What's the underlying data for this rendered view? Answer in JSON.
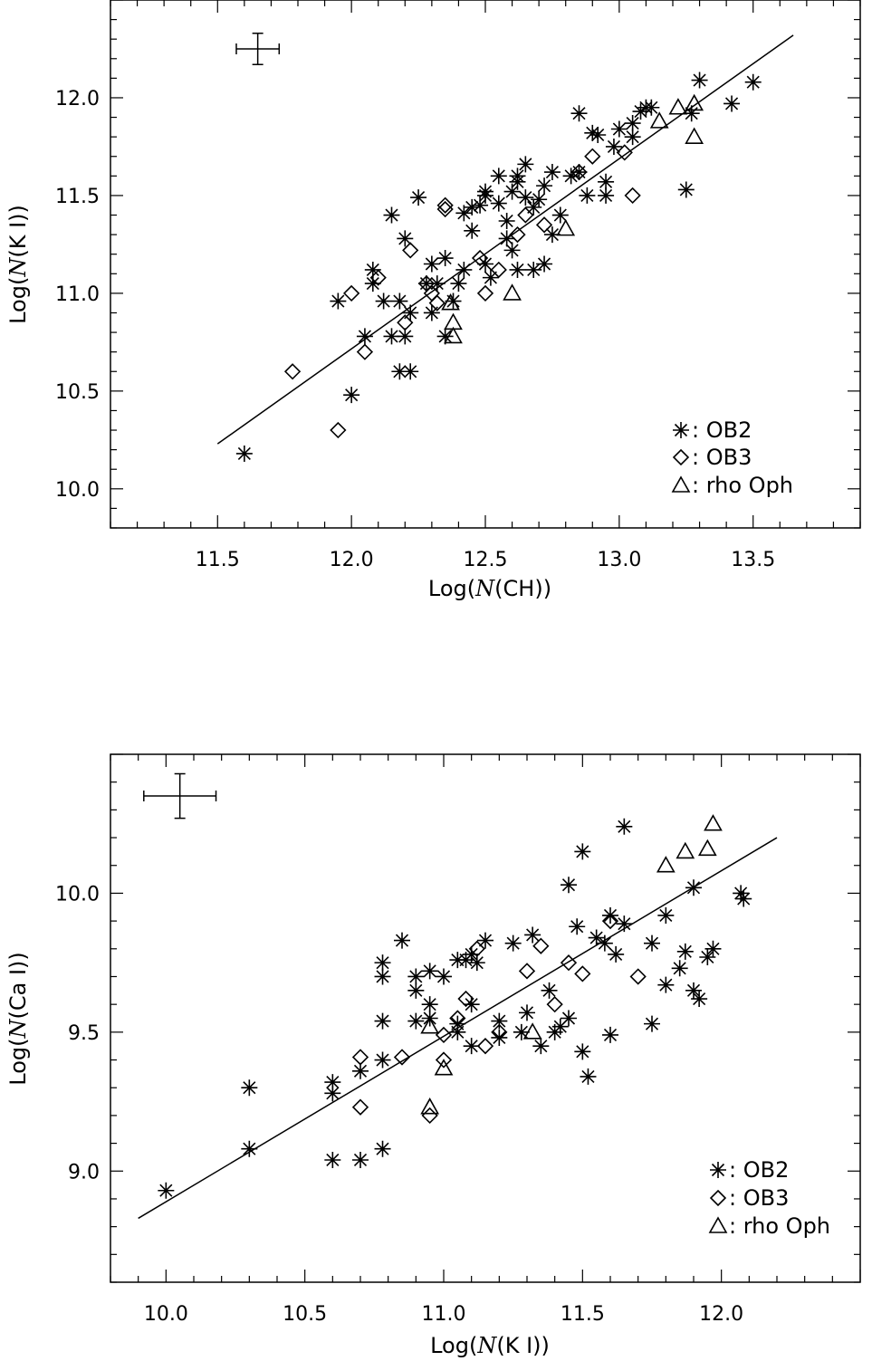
{
  "chart_data": [
    {
      "type": "scatter",
      "xlabel": "Log(N(CH))",
      "xlabel_parts": [
        "Log(",
        "N",
        "(CH))"
      ],
      "ylabel": "Log(N(K I))",
      "ylabel_parts": [
        "Log(",
        "N",
        "(K I))"
      ],
      "xlim": [
        11.1,
        13.9
      ],
      "ylim": [
        9.8,
        12.5
      ],
      "xticks": [
        11.5,
        12.0,
        12.5,
        13.0,
        13.5
      ],
      "xtick_labels": [
        "11.5",
        "12.0",
        "12.5",
        "13.0",
        "13.5"
      ],
      "yticks": [
        10.0,
        10.5,
        11.0,
        11.5,
        12.0
      ],
      "ytick_labels": [
        "10.0",
        "10.5",
        "11.0",
        "11.5",
        "12.0"
      ],
      "grid": false,
      "legend_position": "bottom-right",
      "fit_line": {
        "x": [
          11.5,
          13.65
        ],
        "y": [
          10.23,
          12.32
        ]
      },
      "error_bar": {
        "x": 11.65,
        "y": 12.25,
        "xerr": 0.08,
        "yerr": 0.08
      },
      "series": [
        {
          "name": "OB2",
          "legend_label": ": OB2",
          "marker": "asterisk",
          "points": [
            [
              11.6,
              10.18
            ],
            [
              11.95,
              10.96
            ],
            [
              12.0,
              10.48
            ],
            [
              12.05,
              10.78
            ],
            [
              12.08,
              11.12
            ],
            [
              12.08,
              11.05
            ],
            [
              12.12,
              10.96
            ],
            [
              12.15,
              11.4
            ],
            [
              12.15,
              10.78
            ],
            [
              12.18,
              10.96
            ],
            [
              12.18,
              10.6
            ],
            [
              12.2,
              11.28
            ],
            [
              12.2,
              10.78
            ],
            [
              12.22,
              10.6
            ],
            [
              12.22,
              10.9
            ],
            [
              12.25,
              11.49
            ],
            [
              12.28,
              11.05
            ],
            [
              12.3,
              10.9
            ],
            [
              12.3,
              11.15
            ],
            [
              12.32,
              11.05
            ],
            [
              12.35,
              11.18
            ],
            [
              12.35,
              10.78
            ],
            [
              12.38,
              10.96
            ],
            [
              12.4,
              11.05
            ],
            [
              12.42,
              11.41
            ],
            [
              12.42,
              11.12
            ],
            [
              12.45,
              11.32
            ],
            [
              12.45,
              11.44
            ],
            [
              12.48,
              11.45
            ],
            [
              12.5,
              11.5
            ],
            [
              12.5,
              11.52
            ],
            [
              12.5,
              11.15
            ],
            [
              12.52,
              11.08
            ],
            [
              12.55,
              11.46
            ],
            [
              12.55,
              11.6
            ],
            [
              12.58,
              11.37
            ],
            [
              12.58,
              11.28
            ],
            [
              12.6,
              11.52
            ],
            [
              12.6,
              11.22
            ],
            [
              12.62,
              11.57
            ],
            [
              12.62,
              11.6
            ],
            [
              12.62,
              11.12
            ],
            [
              12.65,
              11.66
            ],
            [
              12.65,
              11.49
            ],
            [
              12.68,
              11.44
            ],
            [
              12.68,
              11.12
            ],
            [
              12.7,
              11.48
            ],
            [
              12.72,
              11.15
            ],
            [
              12.72,
              11.55
            ],
            [
              12.75,
              11.62
            ],
            [
              12.75,
              11.3
            ],
            [
              12.78,
              11.4
            ],
            [
              12.82,
              11.6
            ],
            [
              12.85,
              11.62
            ],
            [
              12.85,
              11.92
            ],
            [
              12.88,
              11.5
            ],
            [
              12.9,
              11.82
            ],
            [
              12.92,
              11.81
            ],
            [
              12.95,
              11.5
            ],
            [
              12.95,
              11.57
            ],
            [
              12.98,
              11.75
            ],
            [
              13.0,
              11.84
            ],
            [
              13.05,
              11.8
            ],
            [
              13.05,
              11.87
            ],
            [
              13.08,
              11.93
            ],
            [
              13.1,
              11.95
            ],
            [
              13.12,
              11.95
            ],
            [
              13.25,
              11.53
            ],
            [
              13.27,
              11.92
            ],
            [
              13.3,
              12.09
            ],
            [
              13.42,
              11.97
            ],
            [
              13.5,
              12.08
            ]
          ]
        },
        {
          "name": "OB3",
          "legend_label": ": OB3",
          "marker": "diamond",
          "points": [
            [
              11.78,
              10.6
            ],
            [
              11.95,
              10.3
            ],
            [
              12.0,
              11.0
            ],
            [
              12.05,
              10.7
            ],
            [
              12.1,
              11.08
            ],
            [
              12.2,
              10.85
            ],
            [
              12.22,
              11.22
            ],
            [
              12.28,
              11.05
            ],
            [
              12.3,
              11.0
            ],
            [
              12.32,
              10.95
            ],
            [
              12.35,
              11.45
            ],
            [
              12.35,
              11.43
            ],
            [
              12.48,
              11.18
            ],
            [
              12.5,
              11.0
            ],
            [
              12.55,
              11.12
            ],
            [
              12.62,
              11.3
            ],
            [
              12.65,
              11.4
            ],
            [
              12.72,
              11.35
            ],
            [
              12.85,
              11.62
            ],
            [
              12.9,
              11.7
            ],
            [
              13.02,
              11.72
            ],
            [
              13.05,
              11.5
            ]
          ]
        },
        {
          "name": "rho Oph",
          "legend_label": ": rho Oph",
          "marker": "triangle",
          "points": [
            [
              12.37,
              10.95
            ],
            [
              12.38,
              10.85
            ],
            [
              12.38,
              10.78
            ],
            [
              12.6,
              11.0
            ],
            [
              12.8,
              11.33
            ],
            [
              13.15,
              11.88
            ],
            [
              13.22,
              11.95
            ],
            [
              13.28,
              11.97
            ],
            [
              13.28,
              11.8
            ]
          ]
        }
      ]
    },
    {
      "type": "scatter",
      "xlabel": "Log(N(K I))",
      "xlabel_parts": [
        "Log(",
        "N",
        "(K I))"
      ],
      "ylabel": "Log(N(Ca I))",
      "ylabel_parts": [
        "Log(",
        "N",
        "(Ca I))"
      ],
      "xlim": [
        9.8,
        12.5
      ],
      "ylim": [
        8.6,
        10.5
      ],
      "xticks": [
        10.0,
        10.5,
        11.0,
        11.5,
        12.0
      ],
      "xtick_labels": [
        "10.0",
        "10.5",
        "11.0",
        "11.5",
        "12.0"
      ],
      "yticks": [
        9.0,
        9.5,
        10.0
      ],
      "ytick_labels": [
        "9.0",
        "9.5",
        "10.0"
      ],
      "grid": false,
      "legend_position": "bottom-right",
      "fit_line": {
        "x": [
          9.9,
          12.2
        ],
        "y": [
          8.83,
          10.2
        ]
      },
      "error_bar": {
        "x": 10.05,
        "y": 10.35,
        "xerr": 0.13,
        "yerr": 0.08
      },
      "series": [
        {
          "name": "OB2",
          "legend_label": ": OB2",
          "marker": "asterisk",
          "points": [
            [
              10.0,
              8.93
            ],
            [
              10.3,
              9.3
            ],
            [
              10.3,
              9.08
            ],
            [
              10.6,
              9.32
            ],
            [
              10.6,
              9.28
            ],
            [
              10.6,
              9.04
            ],
            [
              10.7,
              9.36
            ],
            [
              10.7,
              9.04
            ],
            [
              10.78,
              9.75
            ],
            [
              10.78,
              9.7
            ],
            [
              10.78,
              9.54
            ],
            [
              10.78,
              9.4
            ],
            [
              10.78,
              9.08
            ],
            [
              10.85,
              9.83
            ],
            [
              10.9,
              9.7
            ],
            [
              10.9,
              9.65
            ],
            [
              10.9,
              9.54
            ],
            [
              10.95,
              9.72
            ],
            [
              10.95,
              9.6
            ],
            [
              10.95,
              9.55
            ],
            [
              11.0,
              9.7
            ],
            [
              11.05,
              9.76
            ],
            [
              11.05,
              9.53
            ],
            [
              11.05,
              9.5
            ],
            [
              11.08,
              9.76
            ],
            [
              11.1,
              9.78
            ],
            [
              11.1,
              9.6
            ],
            [
              11.1,
              9.45
            ],
            [
              11.12,
              9.75
            ],
            [
              11.15,
              9.83
            ],
            [
              11.2,
              9.54
            ],
            [
              11.2,
              9.48
            ],
            [
              11.25,
              9.82
            ],
            [
              11.28,
              9.5
            ],
            [
              11.3,
              9.57
            ],
            [
              11.32,
              9.85
            ],
            [
              11.35,
              9.45
            ],
            [
              11.38,
              9.65
            ],
            [
              11.4,
              9.5
            ],
            [
              11.42,
              9.52
            ],
            [
              11.45,
              10.03
            ],
            [
              11.45,
              9.55
            ],
            [
              11.48,
              9.88
            ],
            [
              11.5,
              10.15
            ],
            [
              11.5,
              9.43
            ],
            [
              11.52,
              9.34
            ],
            [
              11.55,
              9.84
            ],
            [
              11.58,
              9.82
            ],
            [
              11.6,
              9.92
            ],
            [
              11.6,
              9.49
            ],
            [
              11.62,
              9.78
            ],
            [
              11.65,
              9.89
            ],
            [
              11.65,
              10.24
            ],
            [
              11.75,
              9.82
            ],
            [
              11.75,
              9.53
            ],
            [
              11.8,
              9.92
            ],
            [
              11.8,
              9.67
            ],
            [
              11.85,
              9.73
            ],
            [
              11.87,
              9.79
            ],
            [
              11.9,
              10.02
            ],
            [
              11.9,
              9.65
            ],
            [
              11.92,
              9.62
            ],
            [
              11.95,
              9.77
            ],
            [
              11.97,
              9.8
            ],
            [
              12.07,
              10.0
            ],
            [
              12.08,
              9.98
            ]
          ]
        },
        {
          "name": "OB3",
          "legend_label": ": OB3",
          "marker": "diamond",
          "points": [
            [
              10.7,
              9.41
            ],
            [
              10.7,
              9.23
            ],
            [
              10.85,
              9.41
            ],
            [
              10.95,
              9.2
            ],
            [
              11.0,
              9.4
            ],
            [
              11.0,
              9.49
            ],
            [
              11.05,
              9.55
            ],
            [
              11.08,
              9.62
            ],
            [
              11.12,
              9.8
            ],
            [
              11.15,
              9.45
            ],
            [
              11.2,
              9.5
            ],
            [
              11.3,
              9.72
            ],
            [
              11.35,
              9.81
            ],
            [
              11.4,
              9.6
            ],
            [
              11.45,
              9.75
            ],
            [
              11.5,
              9.71
            ],
            [
              11.6,
              9.9
            ],
            [
              11.7,
              9.7
            ]
          ]
        },
        {
          "name": "rho Oph",
          "legend_label": ": rho Oph",
          "marker": "triangle",
          "points": [
            [
              10.95,
              9.52
            ],
            [
              10.95,
              9.23
            ],
            [
              11.0,
              9.37
            ],
            [
              11.32,
              9.5
            ],
            [
              11.8,
              10.1
            ],
            [
              11.87,
              10.15
            ],
            [
              11.95,
              10.16
            ],
            [
              11.97,
              10.25
            ]
          ]
        }
      ]
    }
  ]
}
